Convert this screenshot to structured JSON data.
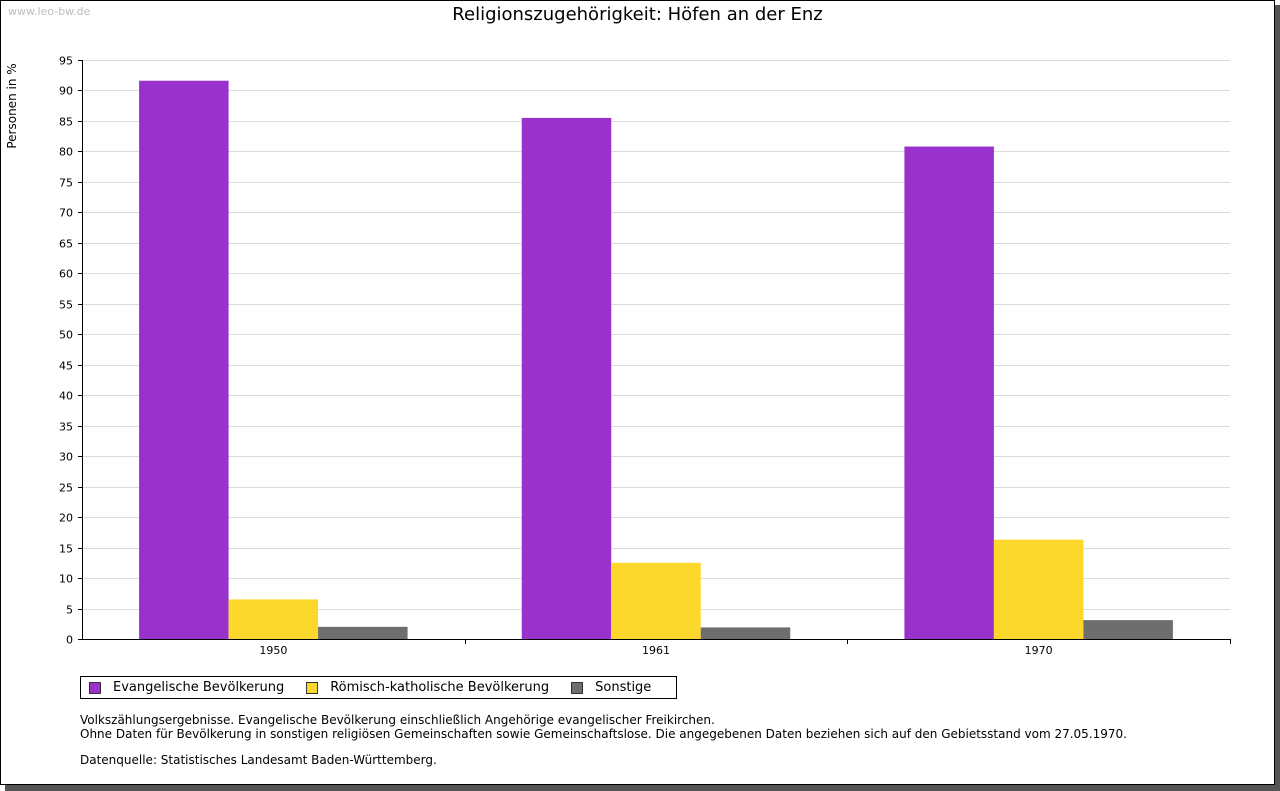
{
  "watermark": "www.leo-bw.de",
  "chart_data": {
    "type": "bar",
    "title": "Religionszugehörigkeit: Höfen an der Enz",
    "ylabel": "Personen in %",
    "xlabel": "",
    "ylim": [
      0,
      95
    ],
    "ytick_step": 5,
    "grid": true,
    "legend_position": "bottom-left",
    "categories": [
      "1950",
      "1961",
      "1970"
    ],
    "series": [
      {
        "name": "Evangelische Bevölkerung",
        "color": "#9932cc",
        "values": [
          91.6,
          85.5,
          80.8
        ]
      },
      {
        "name": "Römisch-katholische Bevölkerung",
        "color": "#fcd82c",
        "values": [
          6.5,
          12.5,
          16.3
        ]
      },
      {
        "name": "Sonstige",
        "color": "#6e6e6e",
        "values": [
          2.0,
          1.9,
          3.1
        ]
      }
    ]
  },
  "notes": {
    "line1": "Volkszählungsergebnisse. Evangelische Bevölkerung einschließlich Angehörige evangelischer Freikirchen.",
    "line2": "Ohne Daten für Bevölkerung in sonstigen religiösen Gemeinschaften sowie Gemeinschaftslose. Die angegebenen Daten beziehen sich auf den Gebietsstand vom 27.05.1970.",
    "source": "Datenquelle: Statistisches Landesamt Baden-Württemberg."
  }
}
